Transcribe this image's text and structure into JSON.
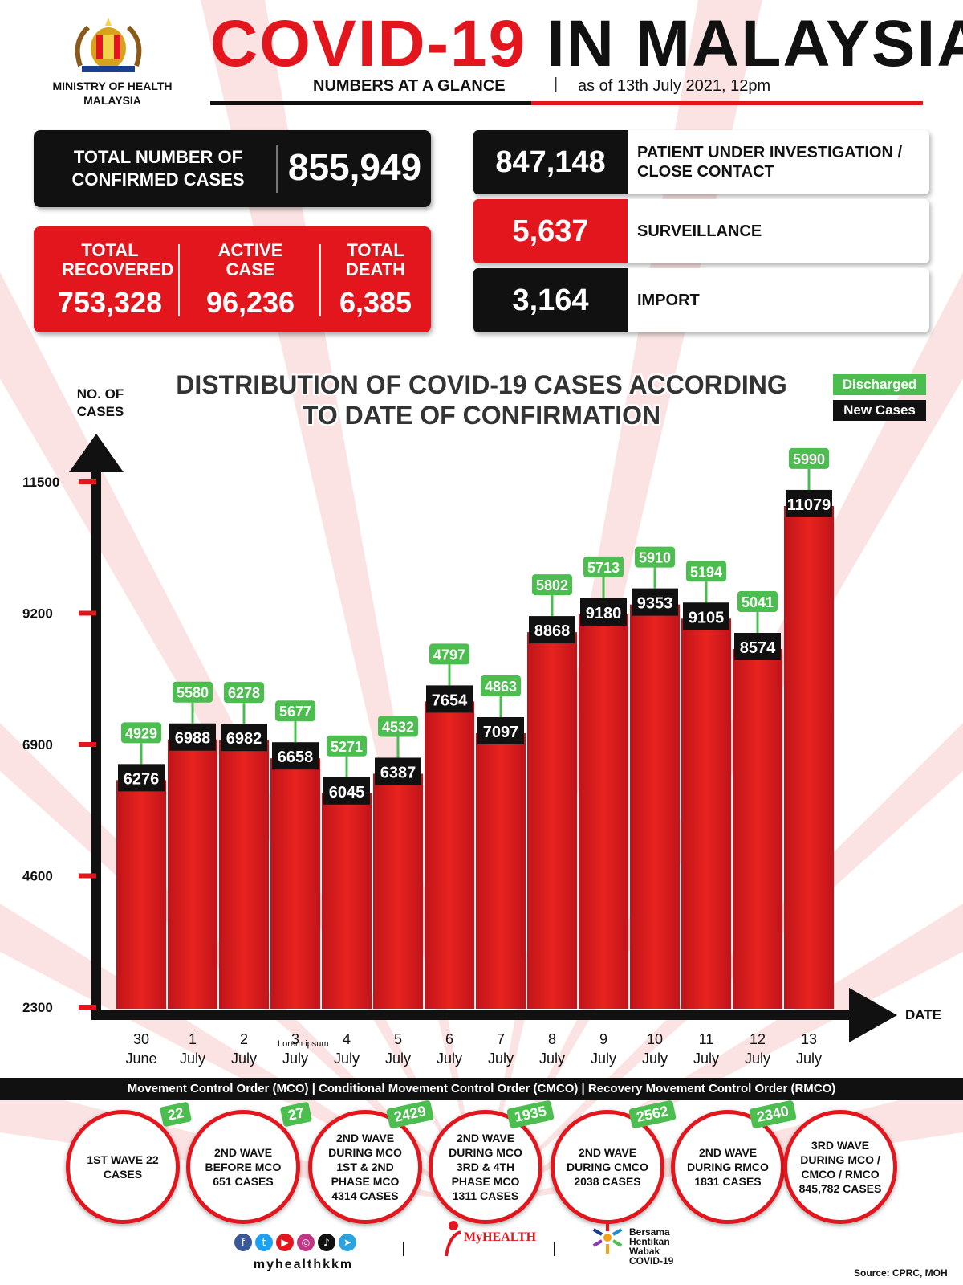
{
  "header": {
    "ministry": "MINISTRY OF HEALTH MALAYSIA",
    "title_red": "COVID-19",
    "title_black": "IN MALAYSIA",
    "subtitle": "NUMBERS AT A GLANCE",
    "separator": "|",
    "as_of": "as of 13th July 2021, 12pm"
  },
  "totals": {
    "confirmed_label": "TOTAL NUMBER OF CONFIRMED CASES",
    "confirmed_value": "855,949",
    "recovered_label": "TOTAL RECOVERED",
    "recovered_value": "753,328",
    "active_label": "ACTIVE CASE",
    "active_value": "96,236",
    "death_label": "TOTAL DEATH",
    "death_value": "6,385"
  },
  "breakdown": [
    {
      "value": "847,148",
      "label": "PATIENT UNDER INVESTIGATION / CLOSE CONTACT"
    },
    {
      "value": "5,637",
      "label": "SURVEILLANCE"
    },
    {
      "value": "3,164",
      "label": "IMPORT"
    }
  ],
  "colors": {
    "red": "#e3161e",
    "black": "#111111",
    "green": "#4cbd4f",
    "bar": "#e01b1b"
  },
  "chart_data": {
    "type": "bar",
    "title": "DISTRIBUTION OF COVID-19 CASES ACCORDING TO DATE OF CONFIRMATION",
    "ylabel": "NO. OF CASES",
    "xlabel": "DATE",
    "yticks": [
      11500,
      9200,
      6900,
      4600,
      2300
    ],
    "ylim": [
      2300,
      11500
    ],
    "legend": [
      "Discharged",
      "New Cases"
    ],
    "legend_position": "top-right",
    "categories": [
      {
        "day": "30",
        "month": "June"
      },
      {
        "day": "1",
        "month": "July"
      },
      {
        "day": "2",
        "month": "July"
      },
      {
        "day": "3",
        "month": "July"
      },
      {
        "day": "4",
        "month": "July"
      },
      {
        "day": "5",
        "month": "July"
      },
      {
        "day": "6",
        "month": "July"
      },
      {
        "day": "7",
        "month": "July"
      },
      {
        "day": "8",
        "month": "July"
      },
      {
        "day": "9",
        "month": "July"
      },
      {
        "day": "10",
        "month": "July"
      },
      {
        "day": "11",
        "month": "July"
      },
      {
        "day": "12",
        "month": "July"
      },
      {
        "day": "13",
        "month": "July"
      }
    ],
    "series": [
      {
        "name": "New Cases",
        "values": [
          6276,
          6988,
          6982,
          6658,
          6045,
          6387,
          7654,
          7097,
          8868,
          9180,
          9353,
          9105,
          8574,
          11079
        ]
      },
      {
        "name": "Discharged",
        "values": [
          4929,
          5580,
          6278,
          5677,
          5271,
          4532,
          4797,
          4863,
          5802,
          5713,
          5910,
          5194,
          5041,
          5990
        ]
      }
    ],
    "annotation": "Lorem ipsum"
  },
  "phases": {
    "band_text": "Movement Control Order (MCO) | Conditional Movement Control Order (CMCO) | Recovery Movement Control Order (RMCO)",
    "items": [
      {
        "text": "1ST WAVE 22 CASES",
        "badge": "22"
      },
      {
        "text": "2ND WAVE BEFORE MCO 651 CASES",
        "badge": "27"
      },
      {
        "text": "2ND WAVE DURING MCO 1ST & 2ND PHASE MCO 4314 CASES",
        "badge": "2429"
      },
      {
        "text": "2ND WAVE DURING MCO 3RD & 4TH PHASE MCO 1311 CASES",
        "badge": "1935"
      },
      {
        "text": "2ND WAVE DURING CMCO 2038 CASES",
        "badge": "2562"
      },
      {
        "text": "2ND WAVE DURING RMCO 1831 CASES",
        "badge": "2340"
      },
      {
        "text": "3RD WAVE DURING MCO / CMCO / RMCO 845,782 CASES",
        "badge": ""
      }
    ]
  },
  "footer": {
    "handle": "myhealthkkm",
    "myhealth": "MyHEALTH",
    "campaign": "Bersama Hentikan Wabak COVID-19",
    "source": "Source: CPRC, MOH",
    "social_icons": [
      "facebook-icon",
      "twitter-icon",
      "youtube-icon",
      "instagram-icon",
      "tiktok-icon",
      "telegram-icon"
    ]
  }
}
